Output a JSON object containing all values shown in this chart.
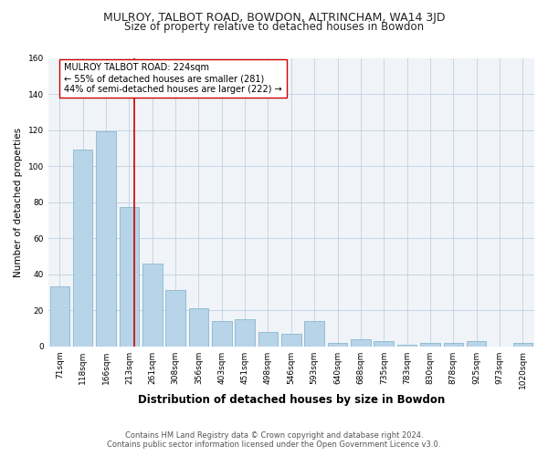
{
  "title": "MULROY, TALBOT ROAD, BOWDON, ALTRINCHAM, WA14 3JD",
  "subtitle": "Size of property relative to detached houses in Bowdon",
  "xlabel": "Distribution of detached houses by size in Bowdon",
  "ylabel": "Number of detached properties",
  "categories": [
    "71sqm",
    "118sqm",
    "166sqm",
    "213sqm",
    "261sqm",
    "308sqm",
    "356sqm",
    "403sqm",
    "451sqm",
    "498sqm",
    "546sqm",
    "593sqm",
    "640sqm",
    "688sqm",
    "735sqm",
    "783sqm",
    "830sqm",
    "878sqm",
    "925sqm",
    "973sqm",
    "1020sqm"
  ],
  "values": [
    33,
    109,
    119,
    77,
    46,
    31,
    21,
    14,
    15,
    8,
    7,
    14,
    2,
    4,
    3,
    1,
    2,
    2,
    3,
    0,
    2
  ],
  "bar_color": "#b8d4e8",
  "bar_edge_color": "#7aaec8",
  "reference_line_color": "#cc0000",
  "annotation_text": "MULROY TALBOT ROAD: 224sqm\n← 55% of detached houses are smaller (281)\n44% of semi-detached houses are larger (222) →",
  "annotation_box_color": "#ffffff",
  "annotation_box_edge_color": "#cc0000",
  "ylim": [
    0,
    160
  ],
  "yticks": [
    0,
    20,
    40,
    60,
    80,
    100,
    120,
    140,
    160
  ],
  "footer": "Contains HM Land Registry data © Crown copyright and database right 2024.\nContains public sector information licensed under the Open Government Licence v3.0.",
  "title_fontsize": 9,
  "subtitle_fontsize": 8.5,
  "xlabel_fontsize": 8.5,
  "ylabel_fontsize": 7.5,
  "tick_fontsize": 6.5,
  "annotation_fontsize": 7,
  "footer_fontsize": 6,
  "bg_color": "#f0f4f8"
}
